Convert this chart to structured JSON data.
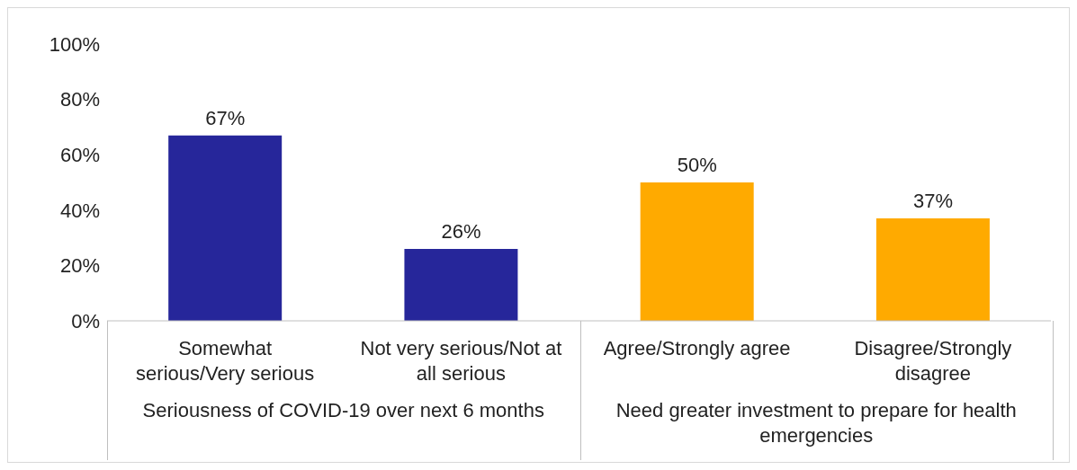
{
  "chart_data": {
    "type": "bar",
    "categories": [
      "Somewhat serious/Very serious",
      "Not very serious/Not at all serious",
      "Agree/Strongly agree",
      "Disagree/Strongly disagree"
    ],
    "values": [
      67,
      26,
      50,
      37
    ],
    "colors": [
      "#26269a",
      "#26269a",
      "#ffaa00",
      "#ffaa00"
    ],
    "value_labels": [
      "67%",
      "26%",
      "50%",
      "37%"
    ],
    "ylim": [
      0,
      100
    ],
    "yticks": [
      {
        "value": 0,
        "label": "0%"
      },
      {
        "value": 20,
        "label": "20%"
      },
      {
        "value": 40,
        "label": "40%"
      },
      {
        "value": 60,
        "label": "60%"
      },
      {
        "value": 80,
        "label": "80%"
      },
      {
        "value": 100,
        "label": "100%"
      }
    ],
    "annotations": [
      "Seriousness of COVID-19 over next 6 months",
      "Need greater investment to prepare for health emergencies"
    ],
    "grid": false,
    "legend": false
  }
}
